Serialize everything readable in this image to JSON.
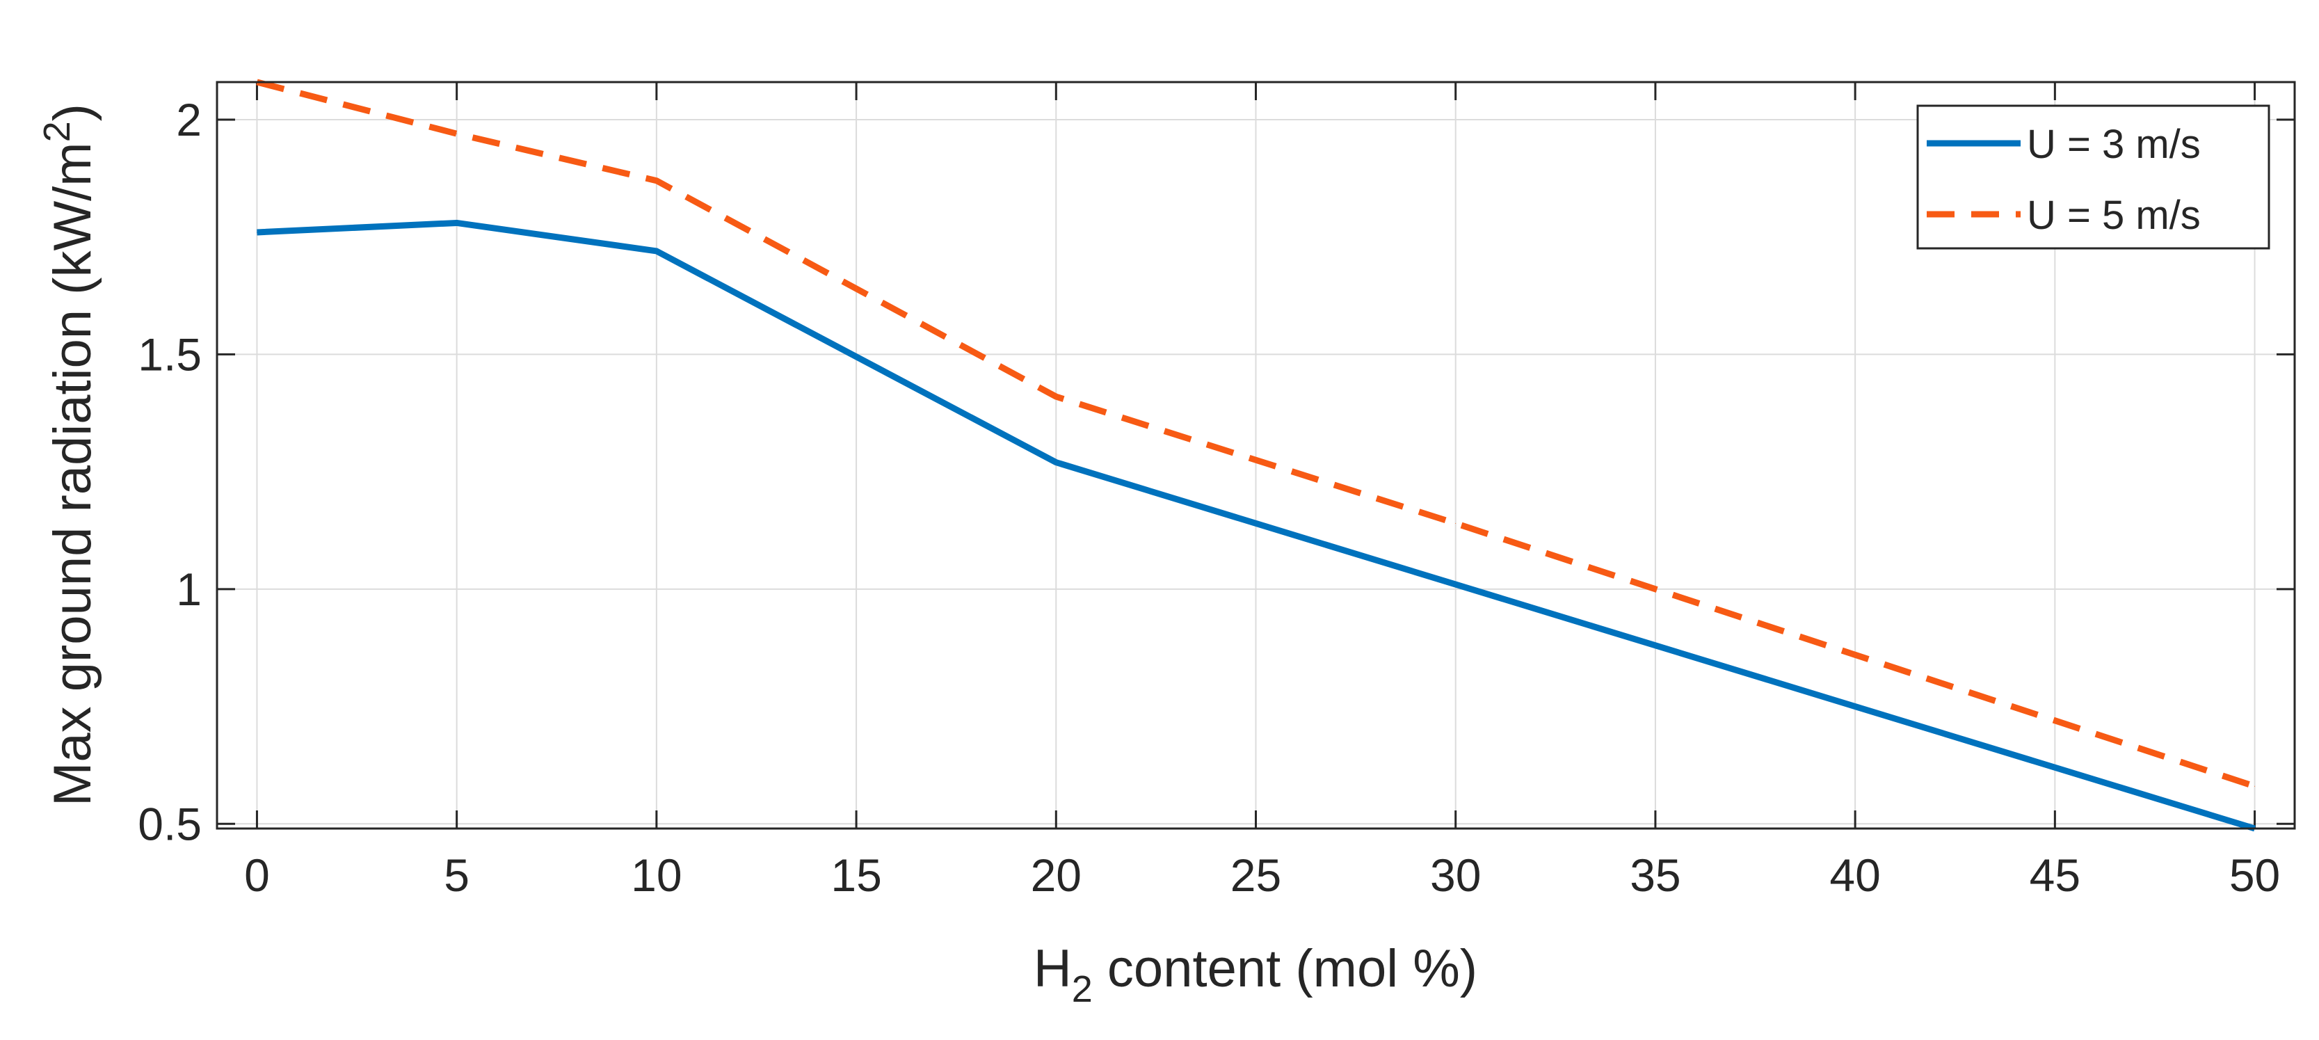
{
  "chart_data": {
    "type": "line",
    "x": [
      0,
      5,
      10,
      20,
      30,
      40,
      50
    ],
    "series": [
      {
        "name": "U = 3 m/s",
        "values": [
          1.76,
          1.78,
          1.72,
          1.27,
          1.01,
          0.75,
          0.49
        ],
        "color": "#0072BD",
        "style": "solid"
      },
      {
        "name": "U = 5 m/s",
        "values": [
          2.08,
          1.97,
          1.87,
          1.41,
          1.14,
          0.86,
          0.58
        ],
        "color": "#F75A14",
        "style": "dashed"
      }
    ],
    "xlim": [
      -1,
      51
    ],
    "ylim": [
      0.49,
      2.08
    ],
    "xticks": [
      0,
      5,
      10,
      15,
      20,
      25,
      30,
      35,
      40,
      45,
      50
    ],
    "xtick_labels": [
      "0",
      "5",
      "10",
      "15",
      "20",
      "25",
      "30",
      "35",
      "40",
      "45",
      "50"
    ],
    "yticks": [
      0.5,
      1,
      1.5,
      2
    ],
    "ytick_labels": [
      "0.5",
      "1",
      "1.5",
      "2"
    ],
    "xlabel": {
      "prefix": "H",
      "subscript": "2",
      "suffix": " content (mol %)"
    },
    "ylabel": {
      "prefix": "Max ground radiation (kW/m",
      "superscript": "2",
      "suffix": ")"
    },
    "grid": true,
    "legend_position": "top-right"
  }
}
